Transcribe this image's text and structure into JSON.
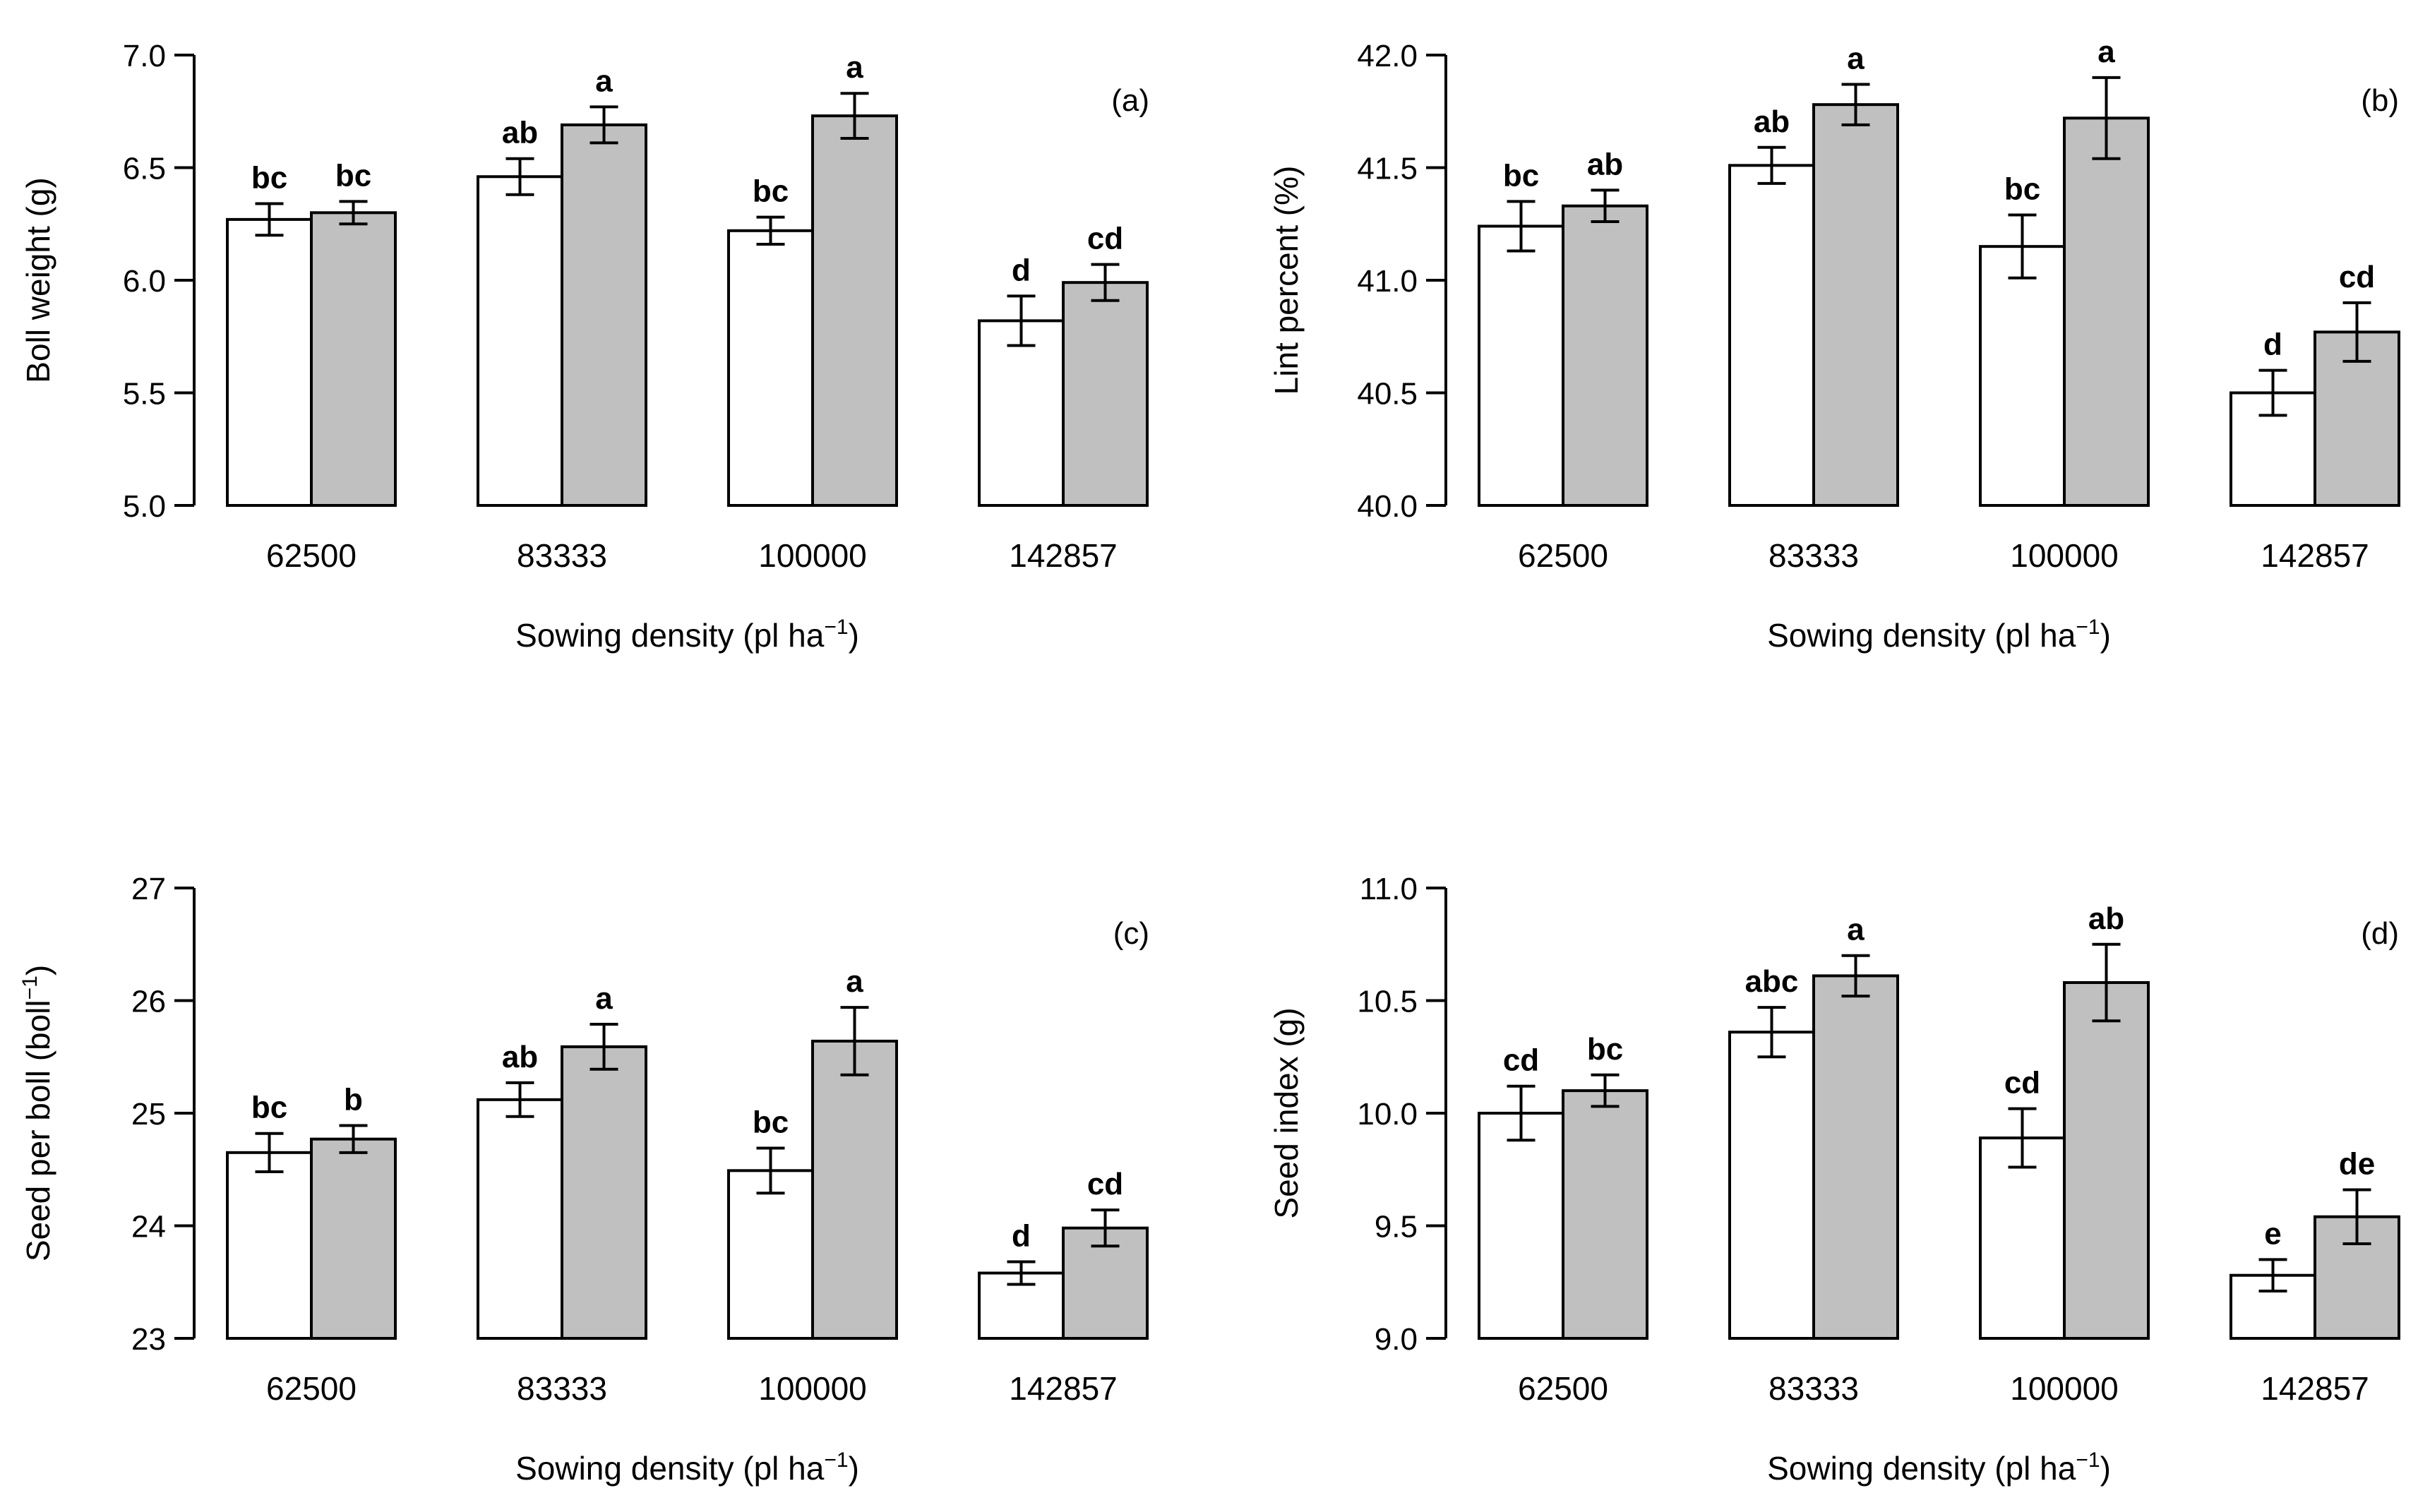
{
  "colors": {
    "series_white": "#ffffff",
    "series_grey": "#c0c0c0",
    "stroke": "#000000"
  },
  "chart_data": [
    {
      "type": "bar",
      "panel": "(a)",
      "categories": [
        "62500",
        "83333",
        "100000",
        "142857"
      ],
      "xlabel": "Sowing density (pl ha",
      "xlabel_sup": "−1",
      "xlabel_close": ")",
      "ylabel": "Boll weight (g)",
      "ylabel_sup": "",
      "ylabel_close": "",
      "ylim": [
        5.0,
        7.0
      ],
      "yticks": [
        5.0,
        5.5,
        6.0,
        6.5,
        7.0
      ],
      "yticklabels": [
        "5.0",
        "5.5",
        "6.0",
        "6.5",
        "7.0"
      ],
      "series": [
        {
          "name": "series 1",
          "fill": "#ffffff",
          "values": [
            6.27,
            6.46,
            6.22,
            5.82
          ],
          "errors": [
            0.07,
            0.08,
            0.06,
            0.11
          ],
          "letters": [
            "bc",
            "ab",
            "bc",
            "d"
          ]
        },
        {
          "name": "series 2",
          "fill": "#c0c0c0",
          "values": [
            6.3,
            6.69,
            6.73,
            5.99
          ],
          "errors": [
            0.05,
            0.08,
            0.1,
            0.08
          ],
          "letters": [
            "bc",
            "a",
            "a",
            "cd"
          ]
        }
      ]
    },
    {
      "type": "bar",
      "panel": "(b)",
      "categories": [
        "62500",
        "83333",
        "100000",
        "142857"
      ],
      "xlabel": "Sowing density (pl ha",
      "xlabel_sup": "−1",
      "xlabel_close": ")",
      "ylabel": "Lint percent (%)",
      "ylabel_sup": "",
      "ylabel_close": "",
      "ylim": [
        40.0,
        42.0
      ],
      "yticks": [
        40.0,
        40.5,
        41.0,
        41.5,
        42.0
      ],
      "yticklabels": [
        "40.0",
        "40.5",
        "41.0",
        "41.5",
        "42.0"
      ],
      "series": [
        {
          "name": "series 1",
          "fill": "#ffffff",
          "values": [
            41.24,
            41.51,
            41.15,
            40.5
          ],
          "errors": [
            0.11,
            0.08,
            0.14,
            0.1
          ],
          "letters": [
            "bc",
            "ab",
            "bc",
            "d"
          ]
        },
        {
          "name": "series 2",
          "fill": "#c0c0c0",
          "values": [
            41.33,
            41.78,
            41.72,
            40.77
          ],
          "errors": [
            0.07,
            0.09,
            0.18,
            0.13
          ],
          "letters": [
            "ab",
            "a",
            "a",
            "cd"
          ]
        }
      ]
    },
    {
      "type": "bar",
      "panel": "(c)",
      "categories": [
        "62500",
        "83333",
        "100000",
        "142857"
      ],
      "xlabel": "Sowing density (pl ha",
      "xlabel_sup": "−1",
      "xlabel_close": ")",
      "ylabel": "Seed per boll (boll",
      "ylabel_sup": "−1",
      "ylabel_close": ")",
      "ylim": [
        23,
        27
      ],
      "yticks": [
        23,
        24,
        25,
        26,
        27
      ],
      "yticklabels": [
        "23",
        "24",
        "25",
        "26",
        "27"
      ],
      "series": [
        {
          "name": "series 1",
          "fill": "#ffffff",
          "values": [
            24.65,
            25.12,
            24.49,
            23.58
          ],
          "errors": [
            0.17,
            0.15,
            0.2,
            0.1
          ],
          "letters": [
            "bc",
            "ab",
            "bc",
            "d"
          ]
        },
        {
          "name": "series 2",
          "fill": "#c0c0c0",
          "values": [
            24.77,
            25.59,
            25.64,
            23.98
          ],
          "errors": [
            0.12,
            0.2,
            0.3,
            0.16
          ],
          "letters": [
            "b",
            "a",
            "a",
            "cd"
          ]
        }
      ]
    },
    {
      "type": "bar",
      "panel": "(d)",
      "categories": [
        "62500",
        "83333",
        "100000",
        "142857"
      ],
      "xlabel": "Sowing density (pl ha",
      "xlabel_sup": "−1",
      "xlabel_close": ")",
      "ylabel": "Seed index (g)",
      "ylabel_sup": "",
      "ylabel_close": "",
      "ylim": [
        9.0,
        11.0
      ],
      "yticks": [
        9.0,
        9.5,
        10.0,
        10.5,
        11.0
      ],
      "yticklabels": [
        "9.0",
        "9.5",
        "10.0",
        "10.5",
        "11.0"
      ],
      "series": [
        {
          "name": "series 1",
          "fill": "#ffffff",
          "values": [
            10.0,
            10.36,
            9.89,
            9.28
          ],
          "errors": [
            0.12,
            0.11,
            0.13,
            0.07
          ],
          "letters": [
            "cd",
            "abc",
            "cd",
            "e"
          ]
        },
        {
          "name": "series 2",
          "fill": "#c0c0c0",
          "values": [
            10.1,
            10.61,
            10.58,
            9.54
          ],
          "errors": [
            0.07,
            0.09,
            0.17,
            0.12
          ],
          "letters": [
            "bc",
            "a",
            "ab",
            "de"
          ]
        }
      ]
    }
  ]
}
